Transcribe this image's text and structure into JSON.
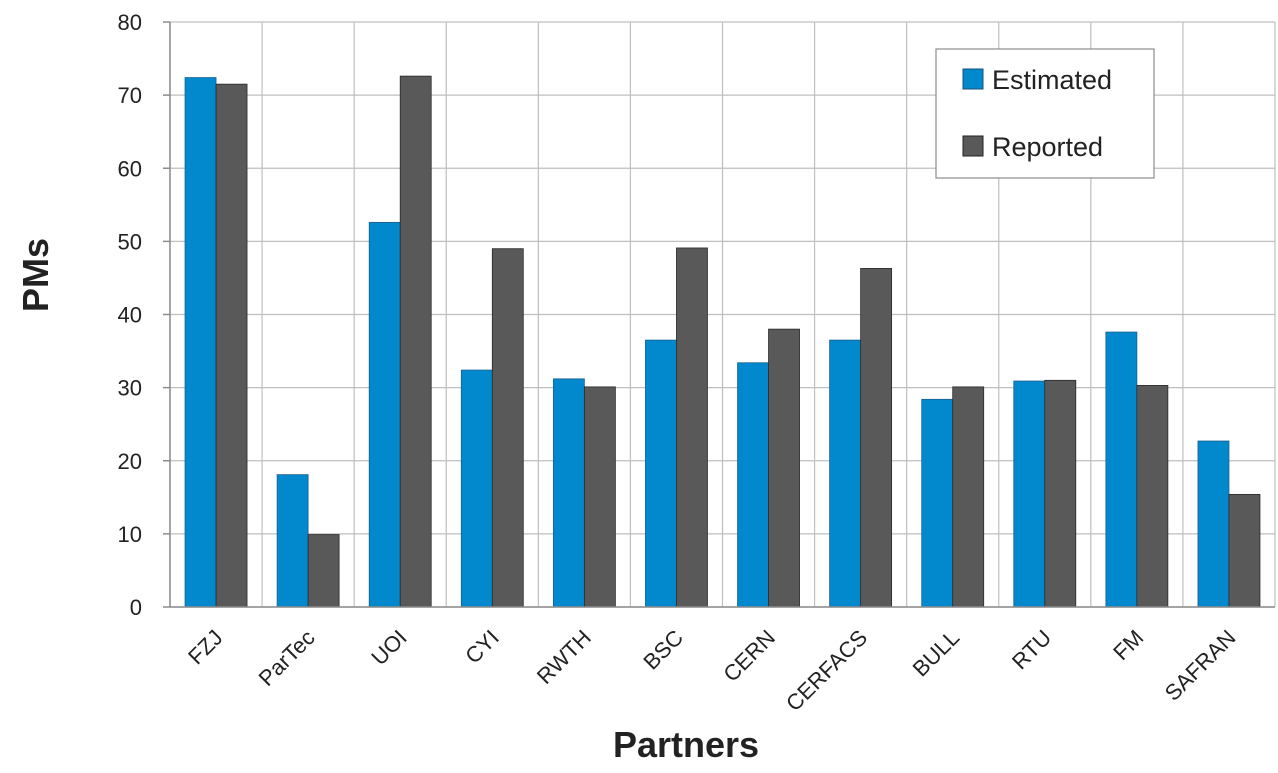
{
  "chart_data": {
    "type": "bar",
    "xlabel": "Partners",
    "ylabel": "PMs",
    "ylim": [
      0,
      80
    ],
    "yticks": [
      0,
      10,
      20,
      30,
      40,
      50,
      60,
      70,
      80
    ],
    "grid": true,
    "legend_position": "top-right",
    "categories": [
      "FZJ",
      "ParTec",
      "UOI",
      "CYI",
      "RWTH",
      "BSC",
      "CERN",
      "CERFACS",
      "BULL",
      "RTU",
      "FM",
      "SAFRAN"
    ],
    "series": [
      {
        "name": "Estimated",
        "color": "#0288CC",
        "values": [
          72.4,
          18.1,
          52.6,
          32.4,
          31.2,
          36.5,
          33.4,
          36.5,
          28.4,
          30.9,
          37.6,
          22.7
        ]
      },
      {
        "name": "Reported",
        "color": "#595959",
        "values": [
          71.5,
          9.9,
          72.6,
          49.0,
          30.1,
          49.1,
          38.0,
          46.3,
          30.1,
          31.0,
          30.3,
          15.4
        ]
      }
    ]
  }
}
